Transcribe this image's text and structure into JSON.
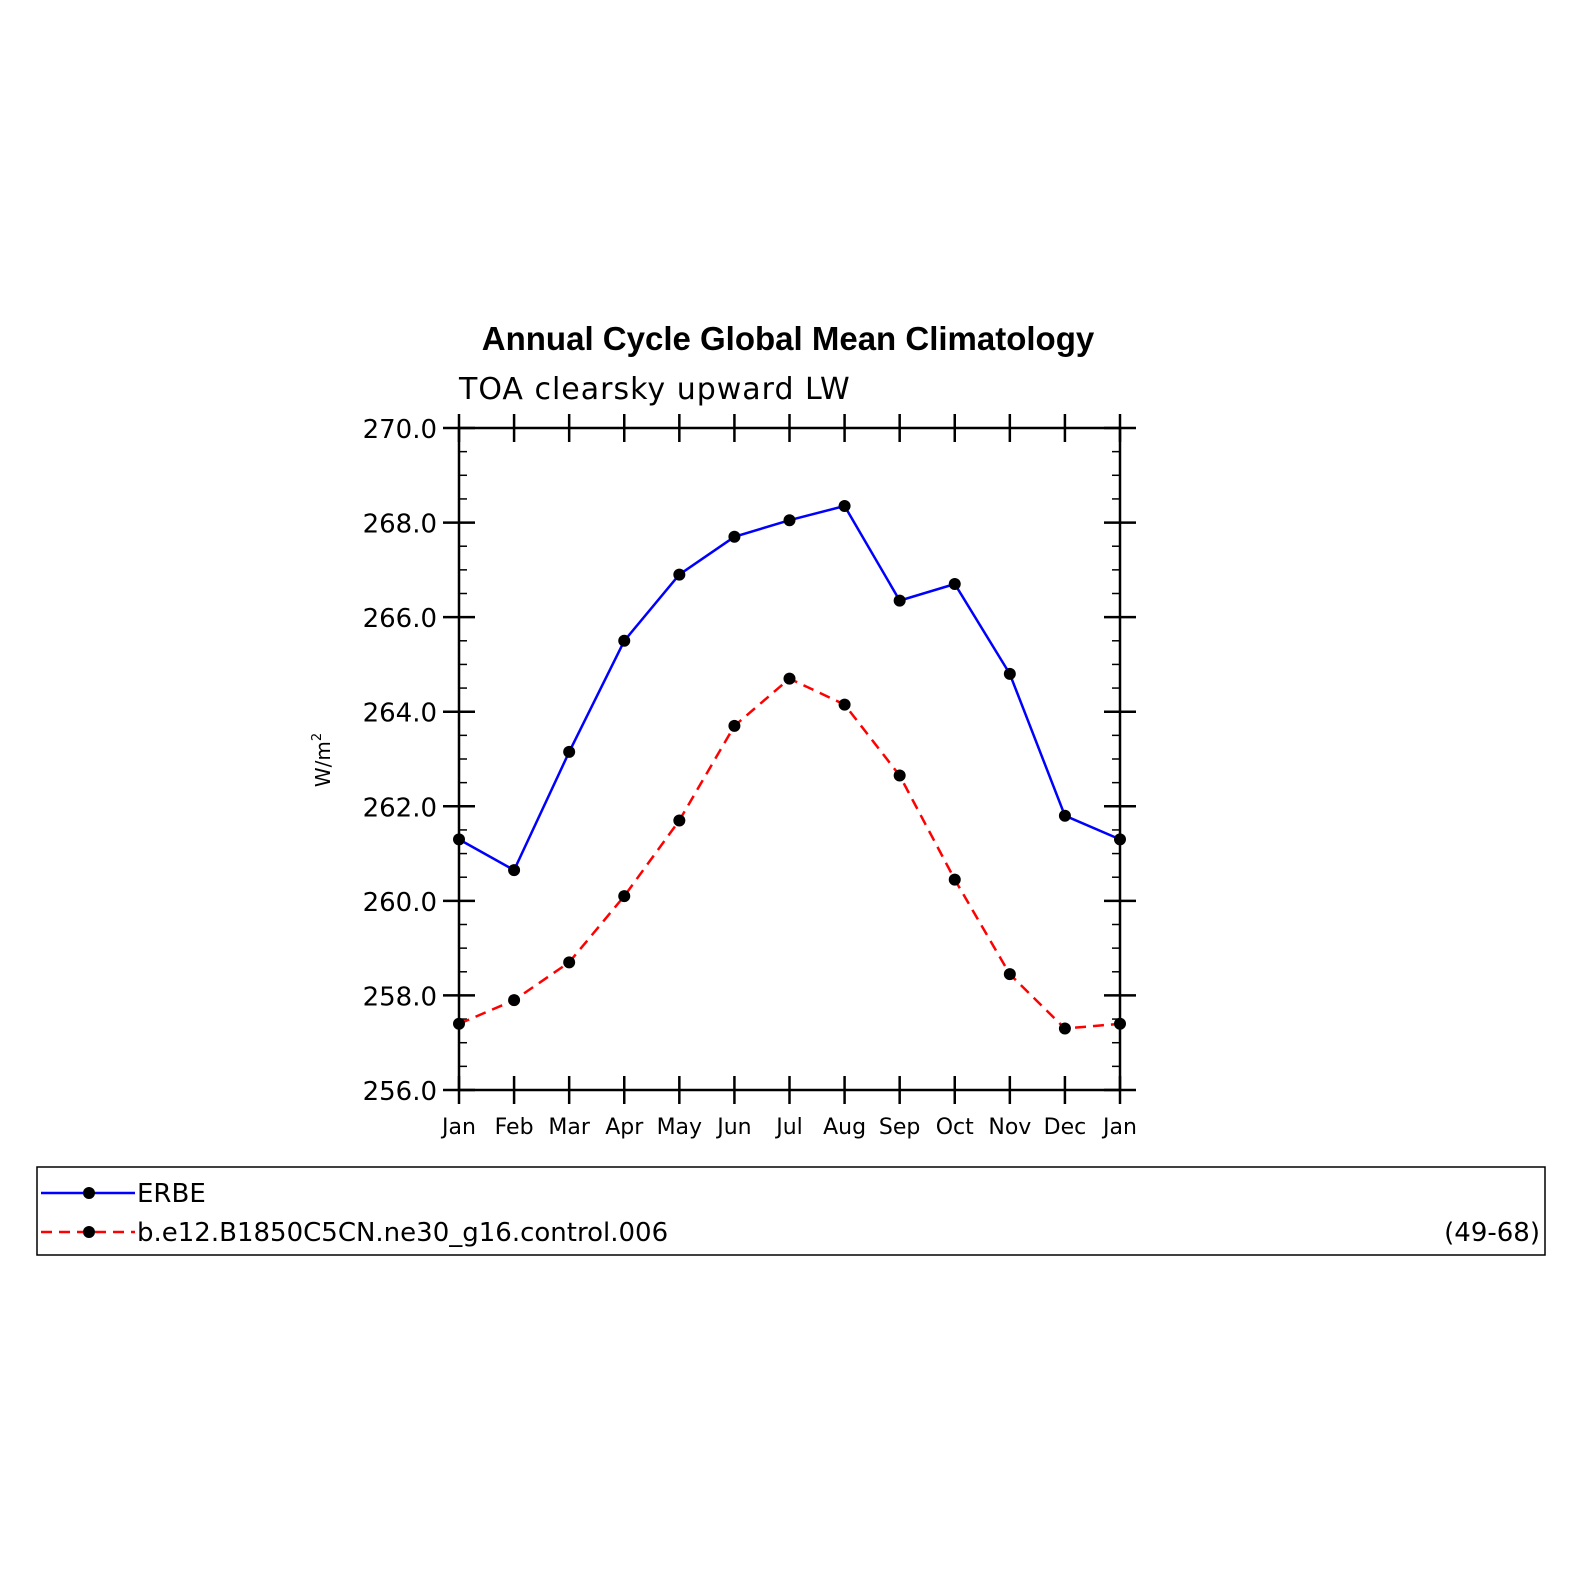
{
  "chart_data": {
    "type": "line",
    "title": "Annual Cycle Global Mean Climatology",
    "subtitle": "TOA clearsky upward LW",
    "ylabel": "W/m",
    "ylabel_sup": "2",
    "categories": [
      "Jan",
      "Feb",
      "Mar",
      "Apr",
      "May",
      "Jun",
      "Jul",
      "Aug",
      "Sep",
      "Oct",
      "Nov",
      "Dec",
      "Jan"
    ],
    "ylim": [
      256.0,
      270.0
    ],
    "yticks": [
      "256.0",
      "258.0",
      "260.0",
      "262.0",
      "264.0",
      "266.0",
      "268.0",
      "270.0"
    ],
    "grid": false,
    "legend_position": "bottom",
    "series": [
      {
        "name": "ERBE",
        "color": "#0000ff",
        "dash": "solid",
        "values": [
          261.3,
          260.65,
          263.15,
          265.5,
          266.9,
          267.7,
          268.05,
          268.35,
          266.35,
          266.7,
          264.8,
          261.8,
          261.3
        ]
      },
      {
        "name": "b.e12.B1850C5CN.ne30_g16.control.006",
        "color": "#ff0000",
        "dash": "dashed",
        "values": [
          257.4,
          257.9,
          258.7,
          260.1,
          261.7,
          263.7,
          264.7,
          264.15,
          262.65,
          260.45,
          258.45,
          257.3,
          257.4
        ],
        "legend_note": "(49-68)"
      }
    ],
    "marker_color": "#000000"
  }
}
